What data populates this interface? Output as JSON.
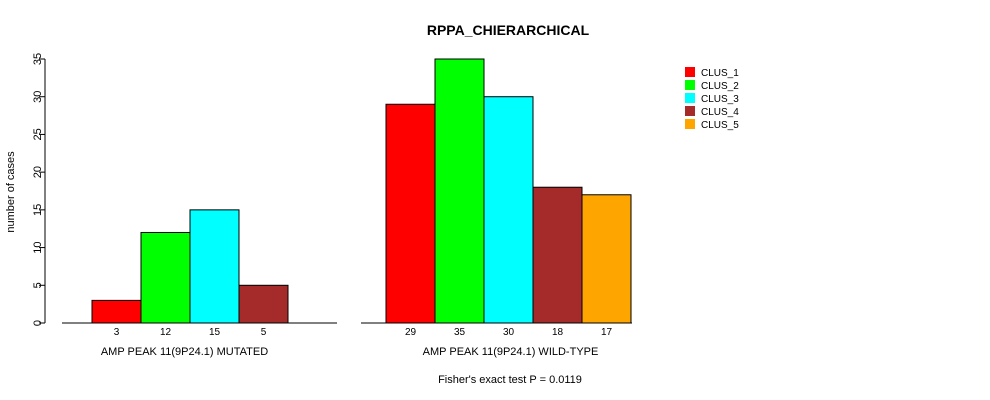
{
  "chart_data": {
    "type": "bar",
    "title": "RPPA_CHIERARCHICAL",
    "ylabel": "number of cases",
    "ylim": [
      0,
      35
    ],
    "yticks": [
      0,
      5,
      10,
      15,
      20,
      25,
      30,
      35
    ],
    "groups": [
      {
        "label": "AMP PEAK 11(9P24.1) MUTATED",
        "values": [
          3,
          12,
          15,
          5,
          0
        ],
        "value_labels": [
          "3",
          "12",
          "15",
          "5",
          ""
        ]
      },
      {
        "label": "AMP PEAK 11(9P24.1) WILD-TYPE",
        "values": [
          29,
          35,
          30,
          18,
          17
        ],
        "value_labels": [
          "29",
          "35",
          "30",
          "18",
          "17"
        ]
      }
    ],
    "series": [
      {
        "name": "CLUS_1",
        "color": "#ff0000"
      },
      {
        "name": "CLUS_2",
        "color": "#00ff00"
      },
      {
        "name": "CLUS_3",
        "color": "#00ffff"
      },
      {
        "name": "CLUS_4",
        "color": "#a52a2a"
      },
      {
        "name": "CLUS_5",
        "color": "#ffa500"
      }
    ],
    "legend_position": "top-right",
    "footnote": "Fisher's exact test P = 0.0119"
  }
}
